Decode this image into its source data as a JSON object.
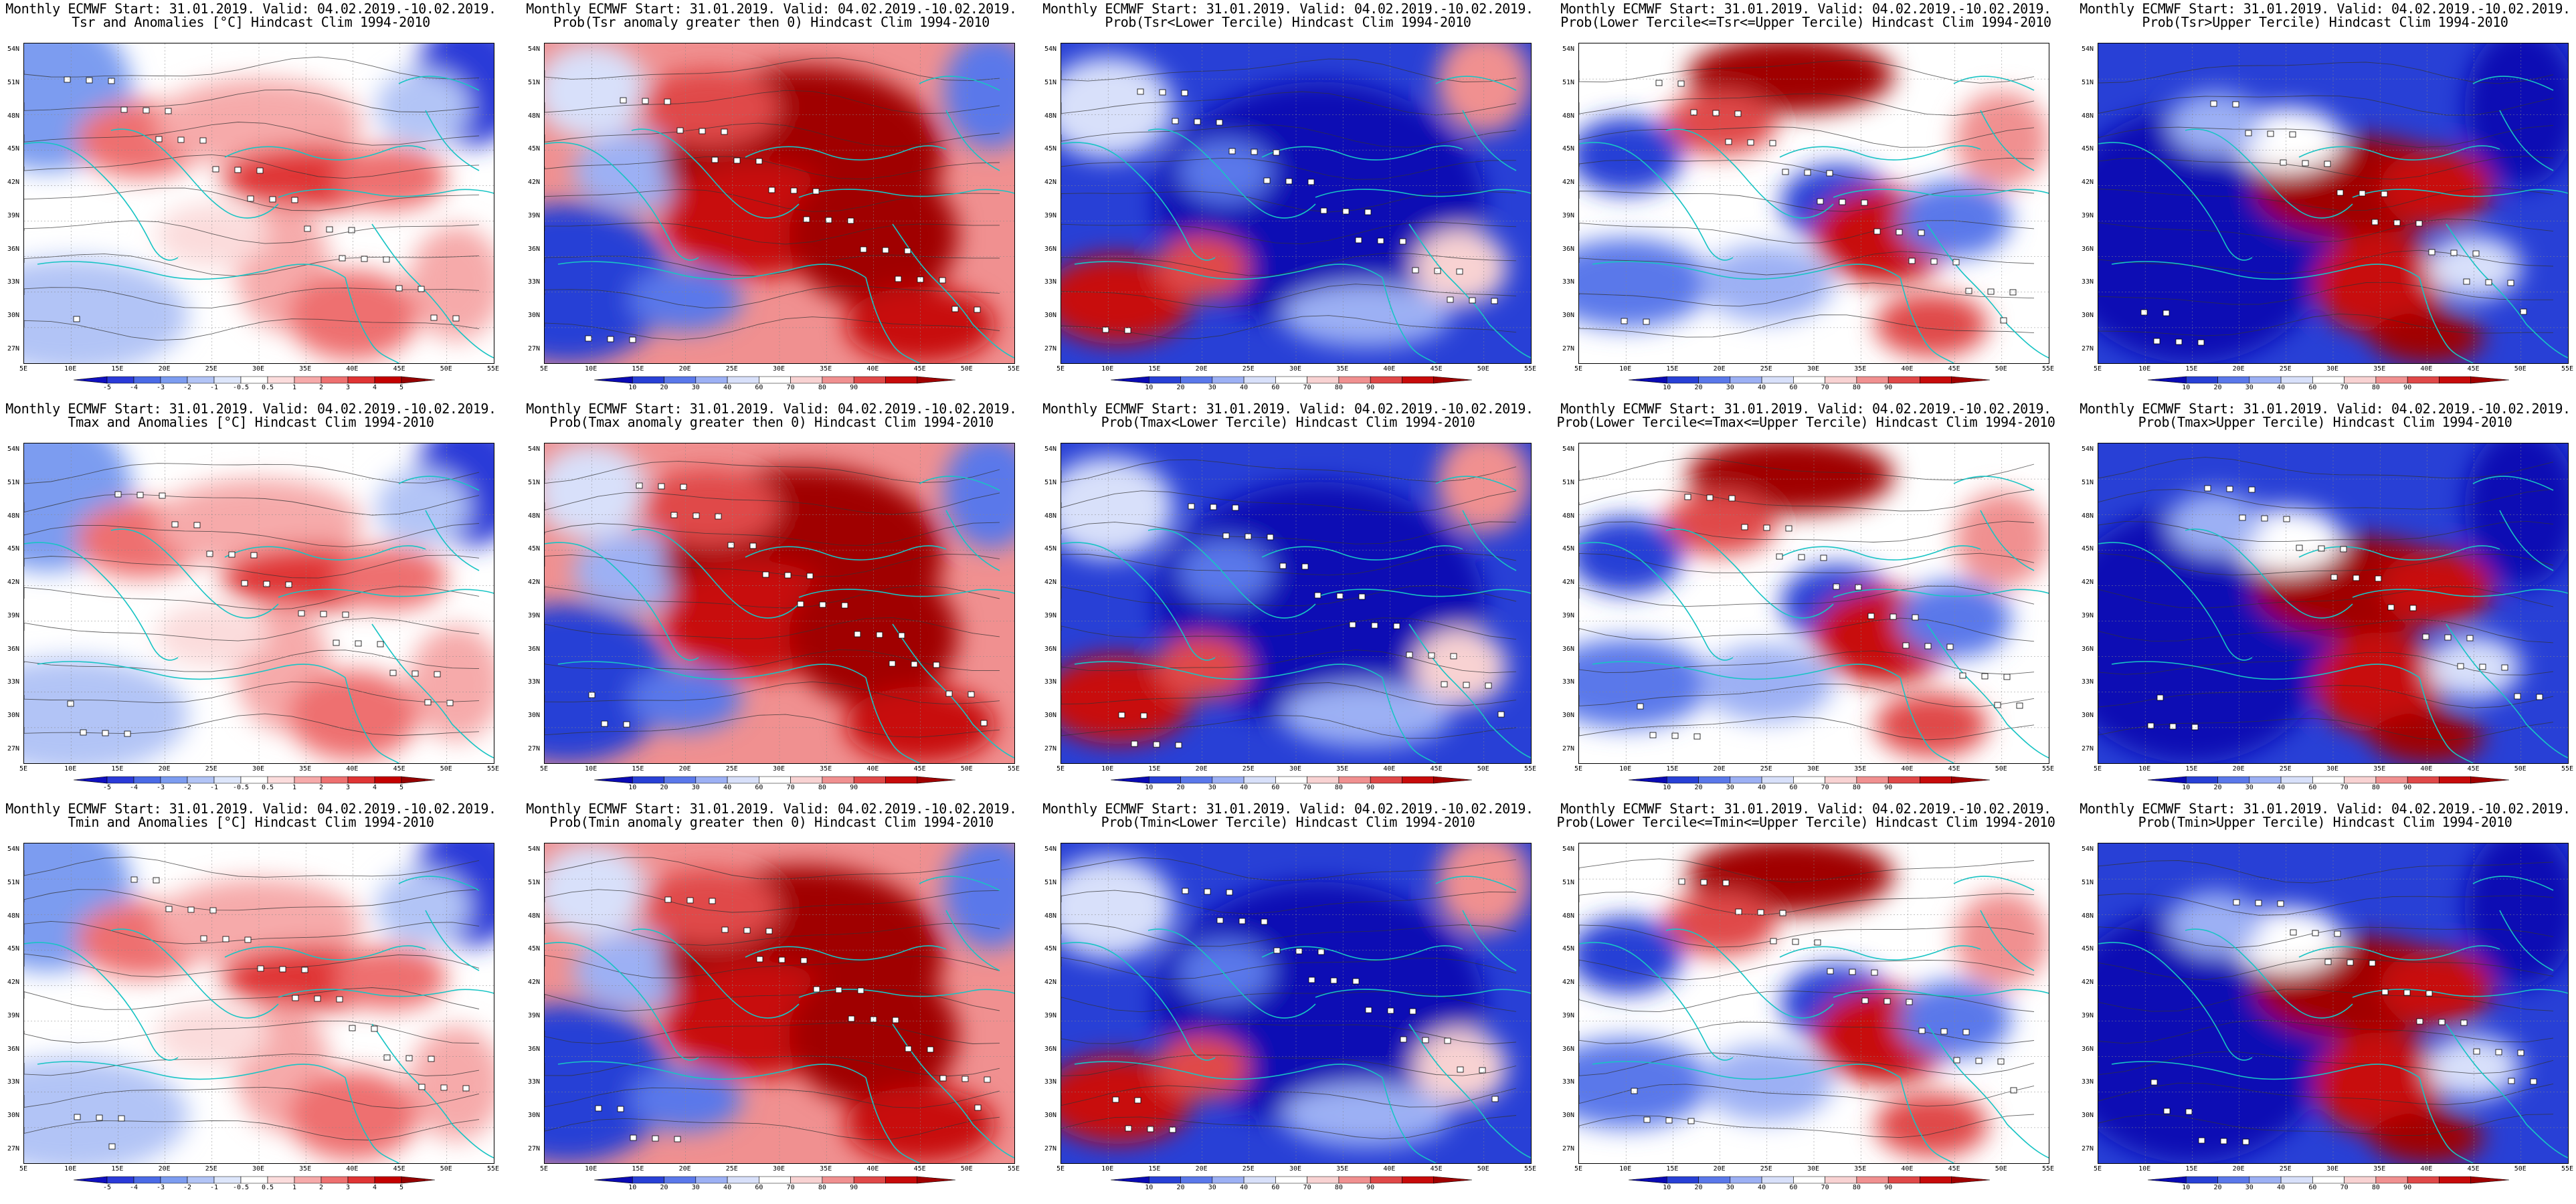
{
  "page": {
    "columns": 5,
    "rows": 3
  },
  "map": {
    "lat_labels": [
      "54N",
      "51N",
      "48N",
      "45N",
      "42N",
      "39N",
      "36N",
      "33N",
      "30N",
      "27N"
    ],
    "lon_labels": [
      "5E",
      "10E",
      "15E",
      "20E",
      "25E",
      "30E",
      "35E",
      "40E",
      "45E",
      "50E",
      "55E"
    ],
    "coast_color": "#18c4c4",
    "contour_color": "#333333"
  },
  "colorbars": {
    "anomaly": {
      "labels": [
        "-5",
        "-4",
        "-3",
        "-2",
        "-1",
        "-0.5",
        "0.5",
        "1",
        "2",
        "3",
        "4",
        "5"
      ],
      "colors": [
        "#1010c0",
        "#2a3ad8",
        "#4a6ae6",
        "#7c9cf0",
        "#b2c4f6",
        "#dde6fb",
        "#ffffff",
        "#fbdcdc",
        "#f6aaaa",
        "#ee7070",
        "#e03434",
        "#c40000",
        "#960000"
      ]
    },
    "probability": {
      "labels": [
        "10",
        "20",
        "30",
        "40",
        "60",
        "70",
        "80",
        "90"
      ],
      "colors": [
        "#0a0ab4",
        "#2840d6",
        "#5a78ea",
        "#9cb0f4",
        "#d8e0fa",
        "#ffffff",
        "#f8d2d2",
        "#f09090",
        "#e04848",
        "#c80a0a",
        "#a00000"
      ]
    }
  },
  "panels": [
    {
      "line1": "Monthly ECMWF Start: 31.01.2019. Valid: 04.02.2019.-10.02.2019.",
      "line2": "Tsr and Anomalies [°C] Hindcast Clim 1994-2010",
      "bar": "anomaly",
      "pattern": "anom"
    },
    {
      "line1": "Monthly ECMWF Start: 31.01.2019. Valid: 04.02.2019.-10.02.2019.",
      "line2": "Prob(Tsr anomaly greater then 0) Hindcast Clim 1994-2010",
      "bar": "probability",
      "pattern": "warm"
    },
    {
      "line1": "Monthly ECMWF Start: 31.01.2019. Valid: 04.02.2019.-10.02.2019.",
      "line2": "Prob(Tsr<Lower Tercile) Hindcast Clim 1994-2010",
      "bar": "probability",
      "pattern": "cold"
    },
    {
      "line1": "Monthly ECMWF Start: 31.01.2019. Valid: 04.02.2019.-10.02.2019.",
      "line2": "Prob(Lower Tercile<=Tsr<=Upper Tercile) Hindcast Clim 1994-2010",
      "bar": "probability",
      "pattern": "mid"
    },
    {
      "line1": "Monthly ECMWF Start: 31.01.2019. Valid: 04.02.2019.-10.02.2019.",
      "line2": "Prob(Tsr>Upper Tercile) Hindcast Clim 1994-2010",
      "bar": "probability",
      "pattern": "upper"
    },
    {
      "line1": "Monthly ECMWF Start: 31.01.2019. Valid: 04.02.2019.-10.02.2019.",
      "line2": "Tmax and Anomalies [°C] Hindcast Clim 1994-2010",
      "bar": "anomaly",
      "pattern": "anom"
    },
    {
      "line1": "Monthly ECMWF Start: 31.01.2019. Valid: 04.02.2019.-10.02.2019.",
      "line2": "Prob(Tmax anomaly greater then 0) Hindcast Clim 1994-2010",
      "bar": "probability",
      "pattern": "warm"
    },
    {
      "line1": "Monthly ECMWF Start: 31.01.2019. Valid: 04.02.2019.-10.02.2019.",
      "line2": "Prob(Tmax<Lower Tercile) Hindcast Clim 1994-2010",
      "bar": "probability",
      "pattern": "cold"
    },
    {
      "line1": "Monthly ECMWF Start: 31.01.2019. Valid: 04.02.2019.-10.02.2019.",
      "line2": "Prob(Lower Tercile<=Tmax<=Upper Tercile) Hindcast Clim 1994-2010",
      "bar": "probability",
      "pattern": "mid"
    },
    {
      "line1": "Monthly ECMWF Start: 31.01.2019. Valid: 04.02.2019.-10.02.2019.",
      "line2": "Prob(Tmax>Upper Tercile) Hindcast Clim 1994-2010",
      "bar": "probability",
      "pattern": "upper"
    },
    {
      "line1": "Monthly ECMWF Start: 31.01.2019. Valid: 04.02.2019.-10.02.2019.",
      "line2": "Tmin and Anomalies [°C] Hindcast Clim 1994-2010",
      "bar": "anomaly",
      "pattern": "anom"
    },
    {
      "line1": "Monthly ECMWF Start: 31.01.2019. Valid: 04.02.2019.-10.02.2019.",
      "line2": "Prob(Tmin anomaly greater then 0) Hindcast Clim 1994-2010",
      "bar": "probability",
      "pattern": "warm"
    },
    {
      "line1": "Monthly ECMWF Start: 31.01.2019. Valid: 04.02.2019.-10.02.2019.",
      "line2": "Prob(Tmin<Lower Tercile) Hindcast Clim 1994-2010",
      "bar": "probability",
      "pattern": "cold"
    },
    {
      "line1": "Monthly ECMWF Start: 31.01.2019. Valid: 04.02.2019.-10.02.2019.",
      "line2": "Prob(Lower Tercile<=Tmin<=Upper Tercile) Hindcast Clim 1994-2010",
      "bar": "probability",
      "pattern": "mid"
    },
    {
      "line1": "Monthly ECMWF Start: 31.01.2019. Valid: 04.02.2019.-10.02.2019.",
      "line2": "Prob(Tmin>Upper Tercile) Hindcast Clim 1994-2010",
      "bar": "probability",
      "pattern": "upper"
    }
  ]
}
